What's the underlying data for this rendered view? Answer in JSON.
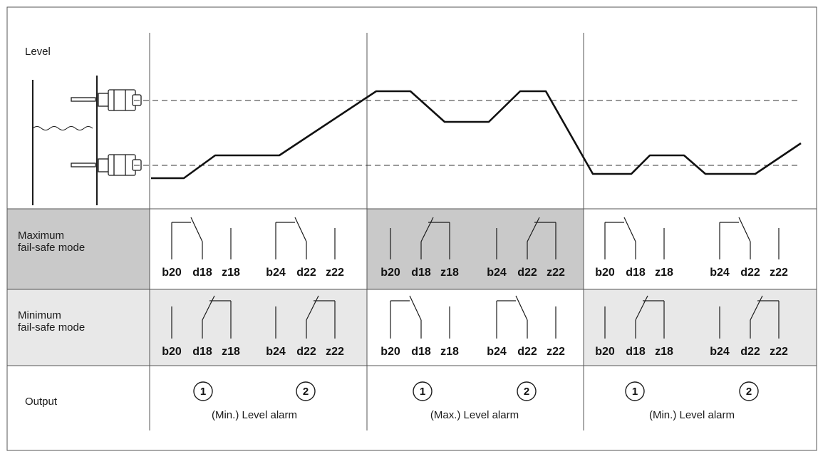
{
  "rows": {
    "level": "Level",
    "max_mode": [
      "Maximum",
      "fail-safe mode"
    ],
    "min_mode": [
      "Minimum",
      "fail-safe mode"
    ],
    "output": "Output"
  },
  "terminals": {
    "left": [
      "b20",
      "d18",
      "z18"
    ],
    "right": [
      "b24",
      "d22",
      "z22"
    ]
  },
  "output_markers": [
    "1",
    "2"
  ],
  "output_captions": [
    "(Min.) Level alarm",
    "(Max.) Level alarm",
    "(Min.) Level alarm"
  ],
  "phases": [
    {
      "max_switch": "normal",
      "min_switch": "switched"
    },
    {
      "max_switch": "switched",
      "min_switch": "normal"
    },
    {
      "max_switch": "normal",
      "min_switch": "switched"
    }
  ],
  "colors": {
    "shade_dark": "#c9c9c9",
    "shade_light": "#e8e8e8",
    "line": "#1a1a1a"
  }
}
